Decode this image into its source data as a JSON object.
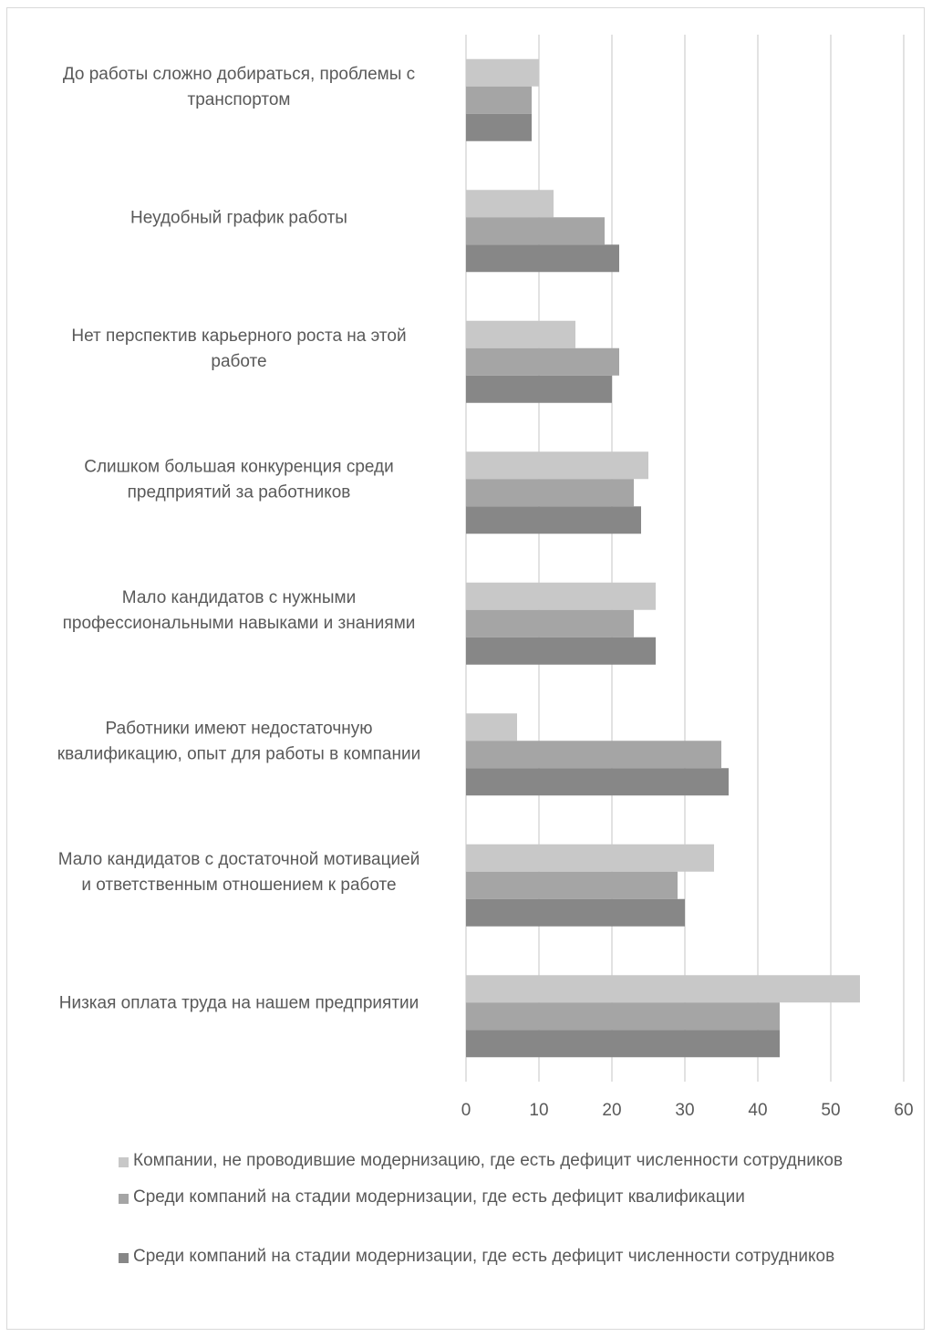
{
  "chart_data": {
    "type": "bar",
    "orientation": "horizontal",
    "categories": [
      [
        "До работы сложно добираться, проблемы с",
        "транспортом"
      ],
      [
        "Неудобный график работы"
      ],
      [
        "Нет перспектив карьерного роста на этой",
        "работе"
      ],
      [
        "Слишком большая конкуренция среди",
        "предприятий за работников"
      ],
      [
        "Мало кандидатов с нужными",
        "профессиональными навыками и знаниями"
      ],
      [
        "Работники имеют недостаточную",
        "квалификацию, опыт для работы в компании"
      ],
      [
        "Мало кандидатов с достаточной мотивацией",
        "и ответственным отношением к работе"
      ],
      [
        "Низкая оплата труда на нашем предприятии"
      ]
    ],
    "series": [
      {
        "name": "Компании, не проводившие модернизацию, где есть дефицит численности сотрудников",
        "color": "#c8c8c8",
        "values": [
          10,
          12,
          15,
          25,
          26,
          7,
          34,
          54
        ]
      },
      {
        "name": "Среди компаний на стадии модернизации, где есть дефицит квалификации",
        "color": "#a5a5a5",
        "values": [
          9,
          19,
          21,
          23,
          23,
          35,
          29,
          43
        ]
      },
      {
        "name": "Среди компаний на стадии модернизации, где есть дефицит численности сотрудников",
        "color": "#878787",
        "values": [
          9,
          21,
          20,
          24,
          26,
          36,
          30,
          43
        ]
      }
    ],
    "xlim": [
      0,
      60
    ],
    "xticks": [
      0,
      10,
      20,
      30,
      40,
      50,
      60
    ],
    "grid": true,
    "legend_position": "bottom",
    "title": "",
    "xlabel": "",
    "ylabel": ""
  }
}
